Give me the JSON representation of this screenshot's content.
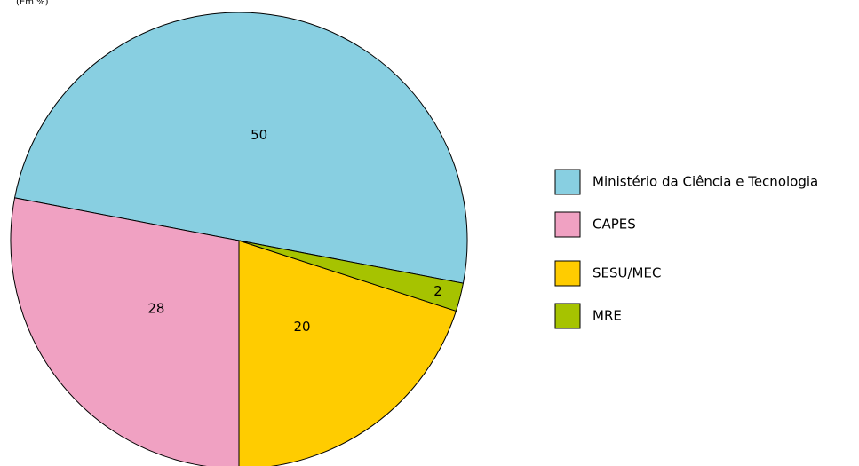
{
  "chart_data": {
    "type": "pie",
    "subtitle": "(Em %)",
    "categories": [
      "Ministério da Ciência e Tecnologia",
      "CAPES",
      "SESU/MEC",
      "MRE"
    ],
    "values": [
      50,
      28,
      20,
      2
    ],
    "colors": [
      "#88cfe1",
      "#f0a1c2",
      "#ffcc00",
      "#a6c300"
    ],
    "legend": "right"
  }
}
